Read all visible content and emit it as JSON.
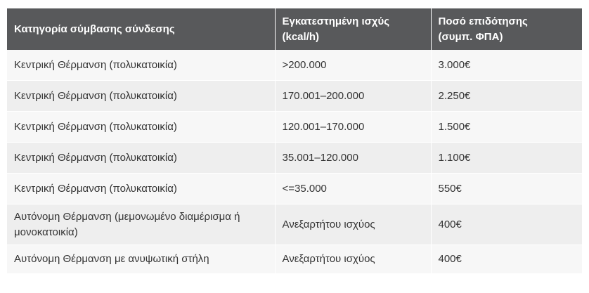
{
  "table": {
    "headers": [
      [
        "Κατηγορία σύμβασης σύνδεσης"
      ],
      [
        "Εγκατεστημένη ισχύς",
        "(kcal/h)"
      ],
      [
        "Ποσό επιδότησης",
        "(συμπ. ΦΠΑ)"
      ]
    ],
    "rows": [
      {
        "category": "Κεντρική Θέρμανση (πολυκατοικία)",
        "power": ">200.000",
        "amount": "3.000€"
      },
      {
        "category": "Κεντρική Θέρμανση (πολυκατοικία)",
        "power": "170.001–200.000",
        "amount": "2.250€"
      },
      {
        "category": "Κεντρική Θέρμανση (πολυκατοικία)",
        "power": "120.001–170.000",
        "amount": "1.500€"
      },
      {
        "category": "Κεντρική Θέρμανση (πολυκατοικία)",
        "power": "35.001–120.000",
        "amount": "1.100€"
      },
      {
        "category": "Κεντρική Θέρμανση (πολυκατοικία)",
        "power": "<=35.000",
        "amount": "550€"
      },
      {
        "category": "Αυτόνομη Θέρμανση (μεμονωμένο διαμέρισμα ή μονοκατοικία)",
        "power": "Ανεξαρτήτου ισχύος",
        "amount": "400€"
      },
      {
        "category": "Αυτόνομη Θέρμανση με ανυψωτική στήλη",
        "power": "Ανεξαρτήτου ισχύος",
        "amount": "400€"
      }
    ]
  },
  "colors": {
    "header_bg": "#58595b",
    "header_text": "#ffffff",
    "row_light": "#f7f7f7",
    "row_dark": "#eeeeee",
    "body_text": "#333333"
  }
}
